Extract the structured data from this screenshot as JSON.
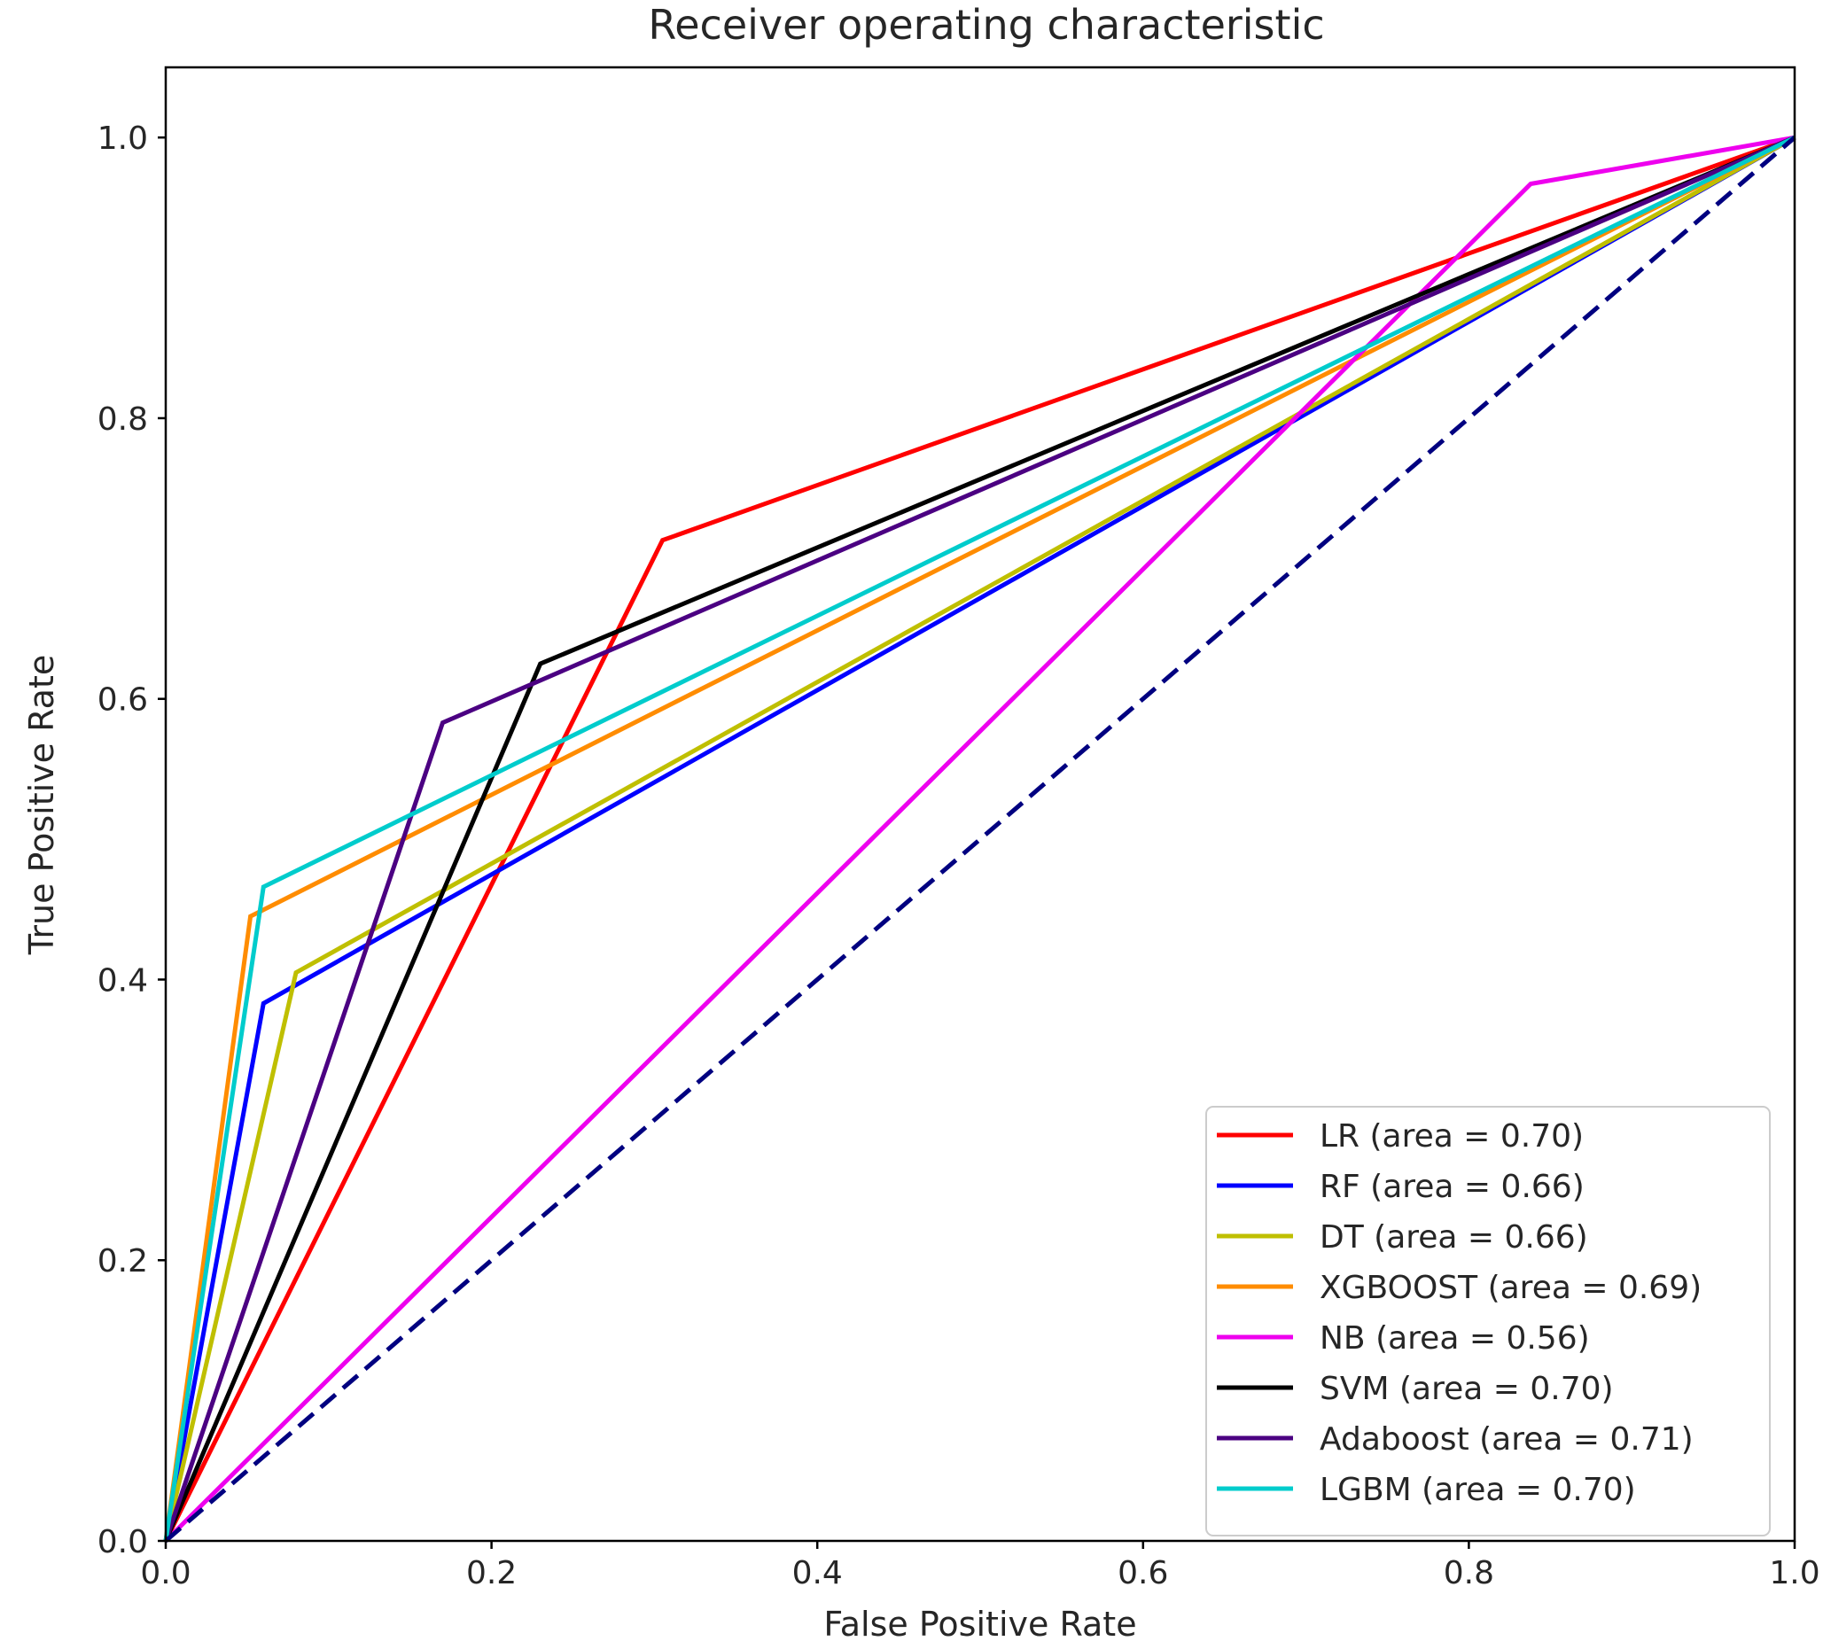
{
  "chart_data": {
    "type": "line",
    "title": "Receiver operating characteristic",
    "xlabel": "False Positive Rate",
    "ylabel": "True Positive Rate",
    "xlim": [
      0.0,
      1.0
    ],
    "ylim": [
      0.0,
      1.05
    ],
    "xticks": [
      "0.0",
      "0.2",
      "0.4",
      "0.6",
      "0.8",
      "1.0"
    ],
    "yticks": [
      "0.0",
      "0.2",
      "0.4",
      "0.6",
      "0.8",
      "1.0"
    ],
    "grid": false,
    "legend_position": "lower right",
    "series": [
      {
        "name": "LR",
        "label": "LR (area = 0.70)",
        "color": "#ff0000",
        "x": [
          0,
          0.305,
          1
        ],
        "y": [
          0,
          0.713,
          1
        ]
      },
      {
        "name": "RF",
        "label": "RF (area = 0.66)",
        "color": "#0000ff",
        "x": [
          0,
          0.06,
          1
        ],
        "y": [
          0,
          0.383,
          1
        ]
      },
      {
        "name": "DT",
        "label": "DT (area = 0.66)",
        "color": "#bfbf00",
        "x": [
          0,
          0.08,
          1
        ],
        "y": [
          0,
          0.405,
          1
        ]
      },
      {
        "name": "XGBOOST",
        "label": "XGBOOST (area = 0.69)",
        "color": "#ff8c00",
        "x": [
          0,
          0.052,
          1
        ],
        "y": [
          0,
          0.445,
          1
        ]
      },
      {
        "name": "NB",
        "label": "NB (area = 0.56)",
        "color": "#ee00ee",
        "x": [
          0,
          0.838,
          1
        ],
        "y": [
          0,
          0.967,
          1
        ]
      },
      {
        "name": "SVM",
        "label": "SVM (area = 0.70)",
        "color": "#000000",
        "x": [
          0,
          0.23,
          1
        ],
        "y": [
          0,
          0.625,
          1
        ]
      },
      {
        "name": "Adaboost",
        "label": "Adaboost (area = 0.71)",
        "color": "#4b0082",
        "x": [
          0,
          0.17,
          1
        ],
        "y": [
          0,
          0.583,
          1
        ]
      },
      {
        "name": "LGBM",
        "label": "LGBM (area = 0.70)",
        "color": "#00cccc",
        "x": [
          0,
          0.06,
          1
        ],
        "y": [
          0,
          0.466,
          1
        ]
      }
    ],
    "reference_line": {
      "name": "chance",
      "color": "#000080",
      "style": "dashed",
      "x": [
        0,
        1
      ],
      "y": [
        0,
        1
      ]
    }
  }
}
